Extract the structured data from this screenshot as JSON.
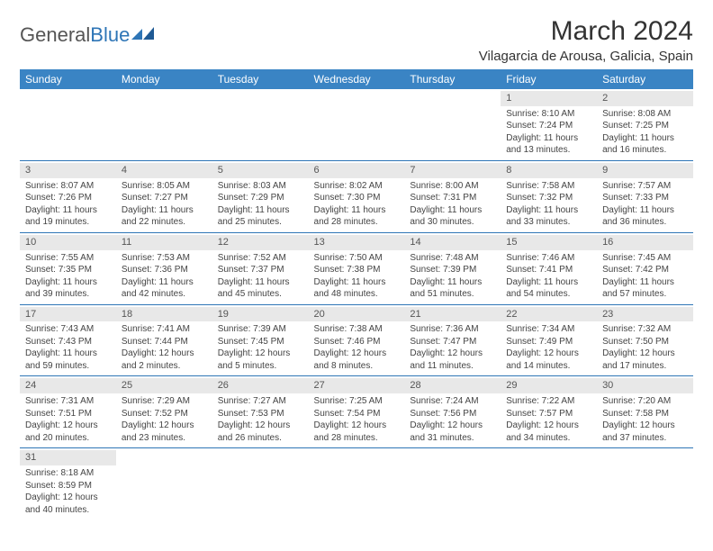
{
  "logo": {
    "text1": "General",
    "text2": "Blue"
  },
  "title": "March 2024",
  "location": "Vilagarcia de Arousa, Galicia, Spain",
  "daysOfWeek": [
    "Sunday",
    "Monday",
    "Tuesday",
    "Wednesday",
    "Thursday",
    "Friday",
    "Saturday"
  ],
  "header_bg": "#3a84c4",
  "border_color": "#2e75b6",
  "weeks": [
    [
      {
        "n": "",
        "sr": "",
        "ss": "",
        "dl": ""
      },
      {
        "n": "",
        "sr": "",
        "ss": "",
        "dl": ""
      },
      {
        "n": "",
        "sr": "",
        "ss": "",
        "dl": ""
      },
      {
        "n": "",
        "sr": "",
        "ss": "",
        "dl": ""
      },
      {
        "n": "",
        "sr": "",
        "ss": "",
        "dl": ""
      },
      {
        "n": "1",
        "sr": "Sunrise: 8:10 AM",
        "ss": "Sunset: 7:24 PM",
        "dl": "Daylight: 11 hours and 13 minutes."
      },
      {
        "n": "2",
        "sr": "Sunrise: 8:08 AM",
        "ss": "Sunset: 7:25 PM",
        "dl": "Daylight: 11 hours and 16 minutes."
      }
    ],
    [
      {
        "n": "3",
        "sr": "Sunrise: 8:07 AM",
        "ss": "Sunset: 7:26 PM",
        "dl": "Daylight: 11 hours and 19 minutes."
      },
      {
        "n": "4",
        "sr": "Sunrise: 8:05 AM",
        "ss": "Sunset: 7:27 PM",
        "dl": "Daylight: 11 hours and 22 minutes."
      },
      {
        "n": "5",
        "sr": "Sunrise: 8:03 AM",
        "ss": "Sunset: 7:29 PM",
        "dl": "Daylight: 11 hours and 25 minutes."
      },
      {
        "n": "6",
        "sr": "Sunrise: 8:02 AM",
        "ss": "Sunset: 7:30 PM",
        "dl": "Daylight: 11 hours and 28 minutes."
      },
      {
        "n": "7",
        "sr": "Sunrise: 8:00 AM",
        "ss": "Sunset: 7:31 PM",
        "dl": "Daylight: 11 hours and 30 minutes."
      },
      {
        "n": "8",
        "sr": "Sunrise: 7:58 AM",
        "ss": "Sunset: 7:32 PM",
        "dl": "Daylight: 11 hours and 33 minutes."
      },
      {
        "n": "9",
        "sr": "Sunrise: 7:57 AM",
        "ss": "Sunset: 7:33 PM",
        "dl": "Daylight: 11 hours and 36 minutes."
      }
    ],
    [
      {
        "n": "10",
        "sr": "Sunrise: 7:55 AM",
        "ss": "Sunset: 7:35 PM",
        "dl": "Daylight: 11 hours and 39 minutes."
      },
      {
        "n": "11",
        "sr": "Sunrise: 7:53 AM",
        "ss": "Sunset: 7:36 PM",
        "dl": "Daylight: 11 hours and 42 minutes."
      },
      {
        "n": "12",
        "sr": "Sunrise: 7:52 AM",
        "ss": "Sunset: 7:37 PM",
        "dl": "Daylight: 11 hours and 45 minutes."
      },
      {
        "n": "13",
        "sr": "Sunrise: 7:50 AM",
        "ss": "Sunset: 7:38 PM",
        "dl": "Daylight: 11 hours and 48 minutes."
      },
      {
        "n": "14",
        "sr": "Sunrise: 7:48 AM",
        "ss": "Sunset: 7:39 PM",
        "dl": "Daylight: 11 hours and 51 minutes."
      },
      {
        "n": "15",
        "sr": "Sunrise: 7:46 AM",
        "ss": "Sunset: 7:41 PM",
        "dl": "Daylight: 11 hours and 54 minutes."
      },
      {
        "n": "16",
        "sr": "Sunrise: 7:45 AM",
        "ss": "Sunset: 7:42 PM",
        "dl": "Daylight: 11 hours and 57 minutes."
      }
    ],
    [
      {
        "n": "17",
        "sr": "Sunrise: 7:43 AM",
        "ss": "Sunset: 7:43 PM",
        "dl": "Daylight: 11 hours and 59 minutes."
      },
      {
        "n": "18",
        "sr": "Sunrise: 7:41 AM",
        "ss": "Sunset: 7:44 PM",
        "dl": "Daylight: 12 hours and 2 minutes."
      },
      {
        "n": "19",
        "sr": "Sunrise: 7:39 AM",
        "ss": "Sunset: 7:45 PM",
        "dl": "Daylight: 12 hours and 5 minutes."
      },
      {
        "n": "20",
        "sr": "Sunrise: 7:38 AM",
        "ss": "Sunset: 7:46 PM",
        "dl": "Daylight: 12 hours and 8 minutes."
      },
      {
        "n": "21",
        "sr": "Sunrise: 7:36 AM",
        "ss": "Sunset: 7:47 PM",
        "dl": "Daylight: 12 hours and 11 minutes."
      },
      {
        "n": "22",
        "sr": "Sunrise: 7:34 AM",
        "ss": "Sunset: 7:49 PM",
        "dl": "Daylight: 12 hours and 14 minutes."
      },
      {
        "n": "23",
        "sr": "Sunrise: 7:32 AM",
        "ss": "Sunset: 7:50 PM",
        "dl": "Daylight: 12 hours and 17 minutes."
      }
    ],
    [
      {
        "n": "24",
        "sr": "Sunrise: 7:31 AM",
        "ss": "Sunset: 7:51 PM",
        "dl": "Daylight: 12 hours and 20 minutes."
      },
      {
        "n": "25",
        "sr": "Sunrise: 7:29 AM",
        "ss": "Sunset: 7:52 PM",
        "dl": "Daylight: 12 hours and 23 minutes."
      },
      {
        "n": "26",
        "sr": "Sunrise: 7:27 AM",
        "ss": "Sunset: 7:53 PM",
        "dl": "Daylight: 12 hours and 26 minutes."
      },
      {
        "n": "27",
        "sr": "Sunrise: 7:25 AM",
        "ss": "Sunset: 7:54 PM",
        "dl": "Daylight: 12 hours and 28 minutes."
      },
      {
        "n": "28",
        "sr": "Sunrise: 7:24 AM",
        "ss": "Sunset: 7:56 PM",
        "dl": "Daylight: 12 hours and 31 minutes."
      },
      {
        "n": "29",
        "sr": "Sunrise: 7:22 AM",
        "ss": "Sunset: 7:57 PM",
        "dl": "Daylight: 12 hours and 34 minutes."
      },
      {
        "n": "30",
        "sr": "Sunrise: 7:20 AM",
        "ss": "Sunset: 7:58 PM",
        "dl": "Daylight: 12 hours and 37 minutes."
      }
    ],
    [
      {
        "n": "31",
        "sr": "Sunrise: 8:18 AM",
        "ss": "Sunset: 8:59 PM",
        "dl": "Daylight: 12 hours and 40 minutes."
      },
      {
        "n": "",
        "sr": "",
        "ss": "",
        "dl": ""
      },
      {
        "n": "",
        "sr": "",
        "ss": "",
        "dl": ""
      },
      {
        "n": "",
        "sr": "",
        "ss": "",
        "dl": ""
      },
      {
        "n": "",
        "sr": "",
        "ss": "",
        "dl": ""
      },
      {
        "n": "",
        "sr": "",
        "ss": "",
        "dl": ""
      },
      {
        "n": "",
        "sr": "",
        "ss": "",
        "dl": ""
      }
    ]
  ]
}
